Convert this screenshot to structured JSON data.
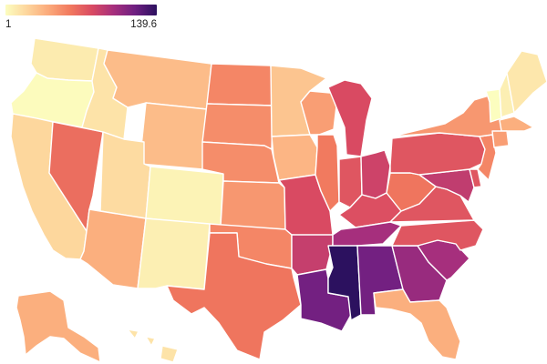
{
  "legend": {
    "min_label": "1",
    "max_label": "139.6",
    "min": 1,
    "max": 139.6,
    "colors": [
      "#fcfdbf",
      "#fdd59c",
      "#fba97a",
      "#f1795e",
      "#d94a62",
      "#a62f7d",
      "#6e1f81",
      "#2c115f"
    ]
  },
  "states": {
    "WA": 10,
    "OR": 2,
    "CA": 20,
    "NV": 65,
    "ID": 14,
    "MT": 32,
    "WY": 32,
    "UT": 18,
    "AZ": 38,
    "CO": 6,
    "NM": 8,
    "ND": 55,
    "SD": 52,
    "NE": 52,
    "KS": 48,
    "OK": 55,
    "TX": 62,
    "MN": 28,
    "IA": 35,
    "MO": 80,
    "AR": 88,
    "LA": 118,
    "WI": 45,
    "IL": 60,
    "MI": 80,
    "IN": 75,
    "OH": 85,
    "KY": 78,
    "TN": 100,
    "MS": 139.6,
    "AL": 118,
    "GA": 105,
    "FL": 38,
    "SC": 100,
    "NC": 75,
    "VA": 75,
    "WV": 62,
    "PA": 75,
    "NY": 48,
    "VT": 1,
    "NH": 8,
    "ME": 12,
    "MA": 38,
    "CT": 45,
    "NJ": 55,
    "DE": 75,
    "MD": 90,
    "AK": 38,
    "HI": 14
  }
}
